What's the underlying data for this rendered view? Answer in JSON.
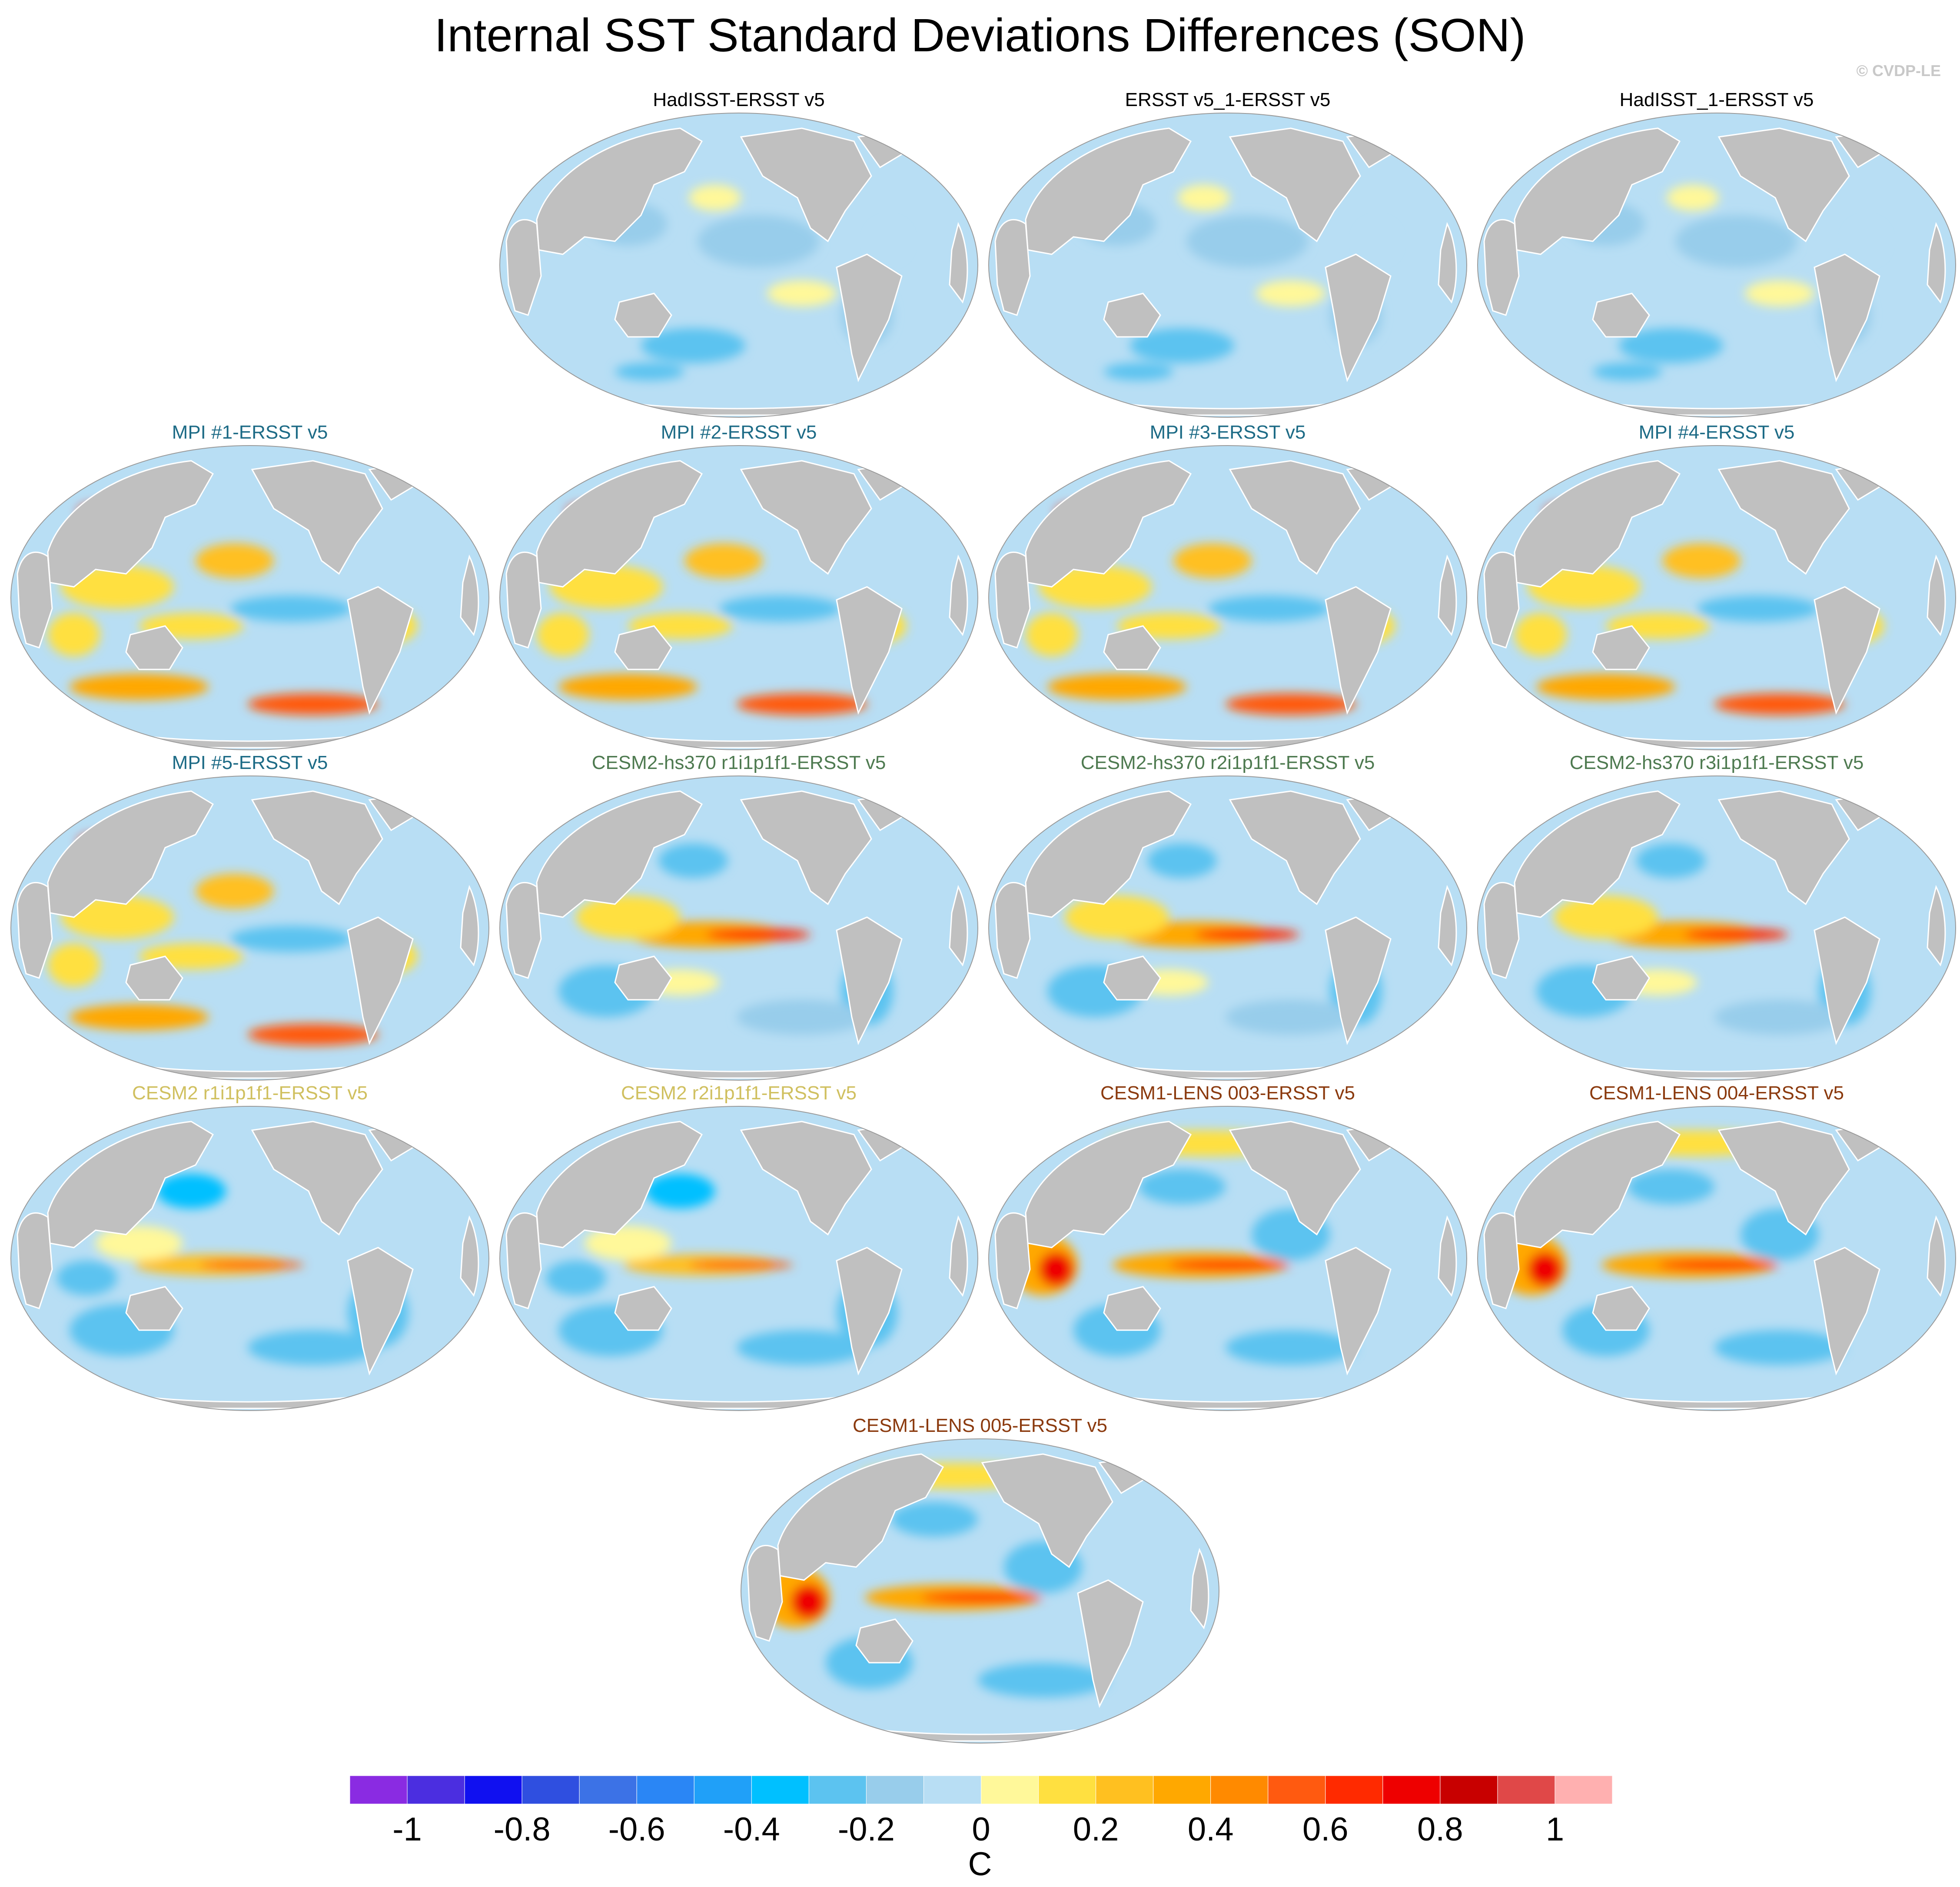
{
  "title": "Internal SST Standard Deviations Differences (SON)",
  "copyright": "© CVDP-LE",
  "panels": [
    {
      "title": "HadISST-ERSST v5",
      "group": "obs"
    },
    {
      "title": "ERSST v5_1-ERSST v5",
      "group": "obs"
    },
    {
      "title": "HadISST_1-ERSST v5",
      "group": "obs"
    },
    {
      "title": "MPI #1-ERSST v5",
      "group": "mpi"
    },
    {
      "title": "MPI #2-ERSST v5",
      "group": "mpi"
    },
    {
      "title": "MPI #3-ERSST v5",
      "group": "mpi"
    },
    {
      "title": "MPI #4-ERSST v5",
      "group": "mpi"
    },
    {
      "title": "MPI #5-ERSST v5",
      "group": "mpi"
    },
    {
      "title": "CESM2-hs370 r1i1p1f1-ERSST v5",
      "group": "cesm2hs"
    },
    {
      "title": "CESM2-hs370 r2i1p1f1-ERSST v5",
      "group": "cesm2hs"
    },
    {
      "title": "CESM2-hs370 r3i1p1f1-ERSST v5",
      "group": "cesm2hs"
    },
    {
      "title": "CESM2 r1i1p1f1-ERSST v5",
      "group": "cesm2"
    },
    {
      "title": "CESM2 r2i1p1f1-ERSST v5",
      "group": "cesm2"
    },
    {
      "title": "CESM1-LENS 003-ERSST v5",
      "group": "cesm1"
    },
    {
      "title": "CESM1-LENS 004-ERSST v5",
      "group": "cesm1"
    },
    {
      "title": "CESM1-LENS 005-ERSST v5",
      "group": "cesm1"
    }
  ],
  "group_colors": {
    "obs": "#000000",
    "mpi": "#1d6b86",
    "cesm2hs": "#4e7a50",
    "cesm2": "#d0c060",
    "cesm1": "#8b3a0e"
  },
  "colorbar": {
    "unit": "C",
    "labels": [
      "-1",
      "-0.8",
      "-0.6",
      "-0.4",
      "-0.2",
      "0",
      "0.2",
      "0.4",
      "0.6",
      "0.8",
      "1"
    ],
    "colors": [
      "#8a2be2",
      "#4b2ee0",
      "#1010f0",
      "#2f4fe0",
      "#3c72e6",
      "#2a86f5",
      "#20a0f8",
      "#00c0ff",
      "#5cc3f0",
      "#98cdeb",
      "#b8def4",
      "#fff89a",
      "#ffe040",
      "#ffc020",
      "#ffa800",
      "#ff8a00",
      "#ff5a10",
      "#ff2a00",
      "#ee0000",
      "#c80000",
      "#e04848",
      "#ffb0b0"
    ]
  }
}
